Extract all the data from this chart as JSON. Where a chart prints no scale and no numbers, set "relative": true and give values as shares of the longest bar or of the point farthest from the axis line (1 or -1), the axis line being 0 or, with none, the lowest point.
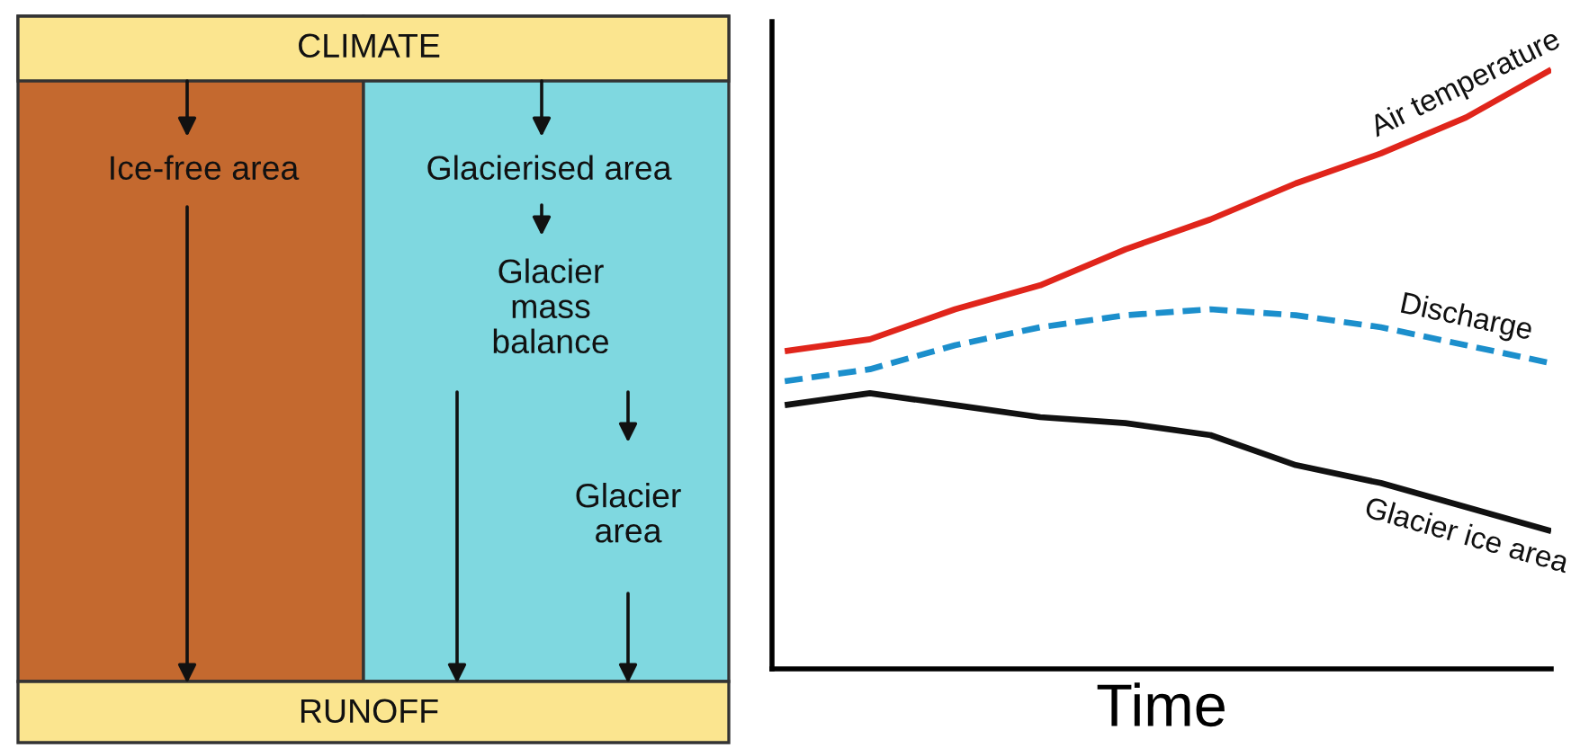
{
  "chart_data": [
    {
      "type": "other",
      "annotations": [
        "CLIMATE",
        "Ice-free area",
        "Glacierised area",
        "Glacier\nmass\nbalance",
        "Glacier\narea",
        "RUNOFF"
      ]
    },
    {
      "type": "line",
      "relative": true,
      "xlabel": "Time",
      "categories": [
        null,
        null,
        null,
        null,
        null,
        null,
        null,
        null,
        null,
        null
      ],
      "series": [
        {
          "name": "Air temperature",
          "color": "#e0251b",
          "line_style": "solid",
          "values": [
            0.53,
            0.55,
            0.6,
            0.64,
            0.7,
            0.75,
            0.81,
            0.86,
            0.92,
            1.0
          ]
        },
        {
          "name": "Discharge",
          "color": "#1c8fcc",
          "line_style": "dashed",
          "values": [
            0.48,
            0.5,
            0.54,
            0.57,
            0.59,
            0.6,
            0.59,
            0.57,
            0.54,
            0.51
          ]
        },
        {
          "name": "Glacier ice area",
          "color": "#111111",
          "line_style": "solid",
          "values": [
            0.44,
            0.46,
            0.44,
            0.42,
            0.41,
            0.39,
            0.34,
            0.31,
            0.27,
            0.23
          ]
        }
      ]
    }
  ]
}
